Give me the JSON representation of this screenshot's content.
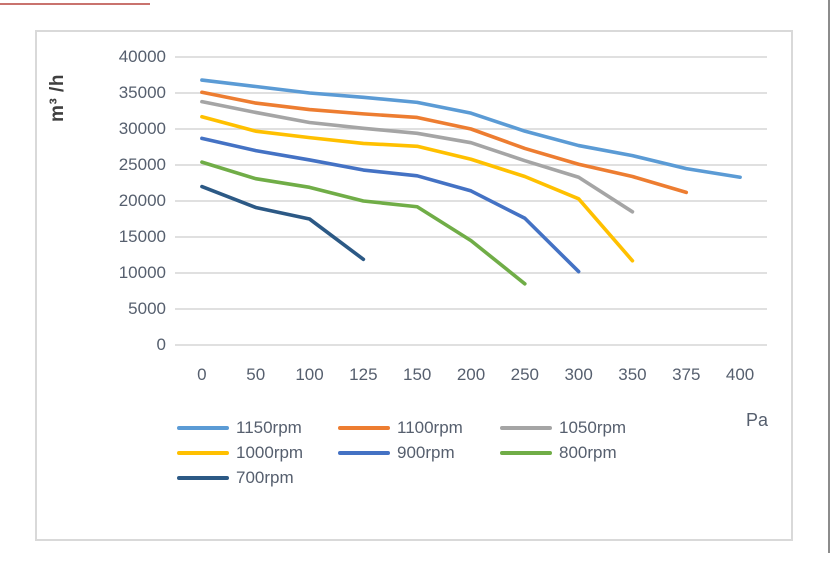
{
  "page": {
    "top_edge_artifact_color": "#c05a55",
    "right_edge_color": "#8c8c8c",
    "chart_border_color": "#d9d9d9",
    "gridline_color": "#d6d6d6",
    "tick_text_color": "#565f6e"
  },
  "chart_data": {
    "type": "line",
    "title": "",
    "ylabel": "m³ /h",
    "xlabel": "Pa",
    "ylim": [
      0,
      40000
    ],
    "ytick_step": 5000,
    "yticks": [
      0,
      5000,
      10000,
      15000,
      20000,
      25000,
      30000,
      35000,
      40000
    ],
    "grid": true,
    "legend_position": "bottom",
    "categories": [
      "0",
      "50",
      "100",
      "125",
      "150",
      "200",
      "250",
      "300",
      "350",
      "375",
      "400"
    ],
    "series": [
      {
        "name": "1150rpm",
        "color": "#5B9BD5",
        "values": [
          36800,
          35900,
          35000,
          34400,
          33700,
          32200,
          29700,
          27700,
          26300,
          24500,
          23300
        ]
      },
      {
        "name": "1100rpm",
        "color": "#ED7D31",
        "values": [
          35100,
          33600,
          32700,
          32100,
          31600,
          30000,
          27300,
          25100,
          23400,
          21200,
          null
        ]
      },
      {
        "name": "1050rpm",
        "color": "#A5A5A5",
        "values": [
          33800,
          32300,
          30900,
          30100,
          29400,
          28100,
          25600,
          23300,
          18500,
          null,
          null
        ]
      },
      {
        "name": "1000rpm",
        "color": "#FFC000",
        "values": [
          31700,
          29700,
          28800,
          28000,
          27600,
          25800,
          23400,
          20300,
          11700,
          null,
          null
        ]
      },
      {
        "name": "900rpm",
        "color": "#4472C4",
        "values": [
          28700,
          27000,
          25700,
          24300,
          23500,
          21400,
          17600,
          10200,
          null,
          null,
          null
        ]
      },
      {
        "name": "800rpm",
        "color": "#70AD47",
        "values": [
          25400,
          23100,
          21900,
          20000,
          19200,
          14500,
          8500,
          null,
          null,
          null,
          null
        ]
      },
      {
        "name": "700rpm",
        "color": "#2C5985",
        "values": [
          22000,
          19100,
          17500,
          11900,
          null,
          null,
          null,
          null,
          null,
          null,
          null
        ]
      }
    ]
  }
}
